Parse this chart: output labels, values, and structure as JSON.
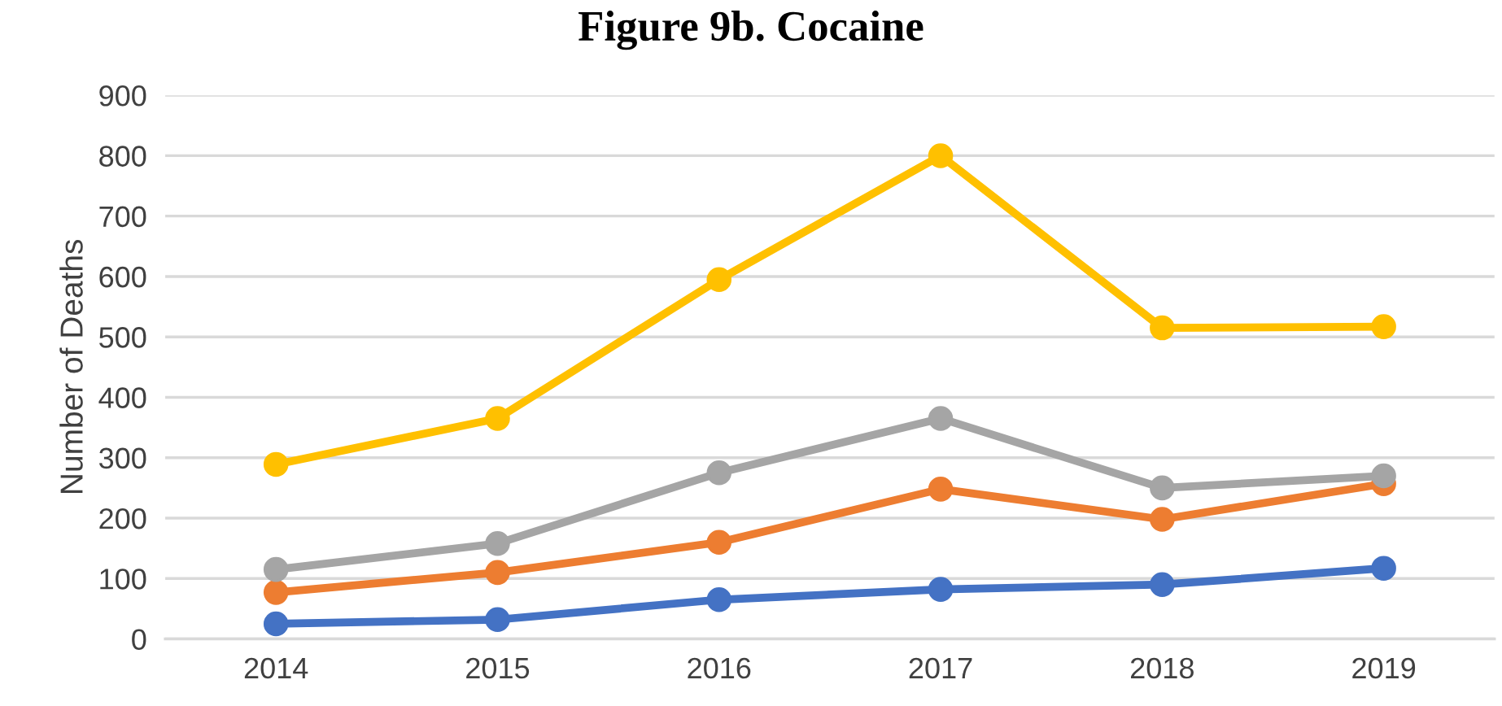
{
  "chart_data": {
    "type": "line",
    "title": "Figure 9b. Cocaine",
    "ylabel": "Number of Deaths",
    "categories": [
      "2014",
      "2015",
      "2016",
      "2017",
      "2018",
      "2019"
    ],
    "series": [
      {
        "color": "#4472c4",
        "values": [
          25,
          32,
          65,
          82,
          90,
          117
        ]
      },
      {
        "color": "#ed7d31",
        "values": [
          77,
          110,
          160,
          248,
          198,
          257
        ]
      },
      {
        "color": "#a5a5a5",
        "values": [
          115,
          158,
          275,
          365,
          250,
          270
        ]
      },
      {
        "color": "#ffc000",
        "values": [
          289,
          365,
          595,
          800,
          515,
          517
        ]
      }
    ],
    "ylim": [
      0,
      900
    ],
    "yticks": [
      0,
      100,
      200,
      300,
      400,
      500,
      600,
      700,
      800,
      900
    ],
    "grid": "y",
    "marker": "circle",
    "line_style": "solid"
  }
}
